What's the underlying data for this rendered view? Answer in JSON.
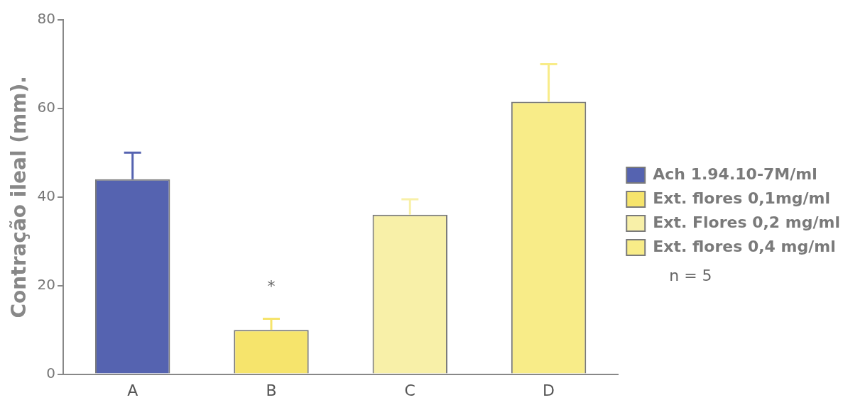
{
  "chart_data": {
    "type": "bar",
    "ylabel": "Contração ileal (mm).",
    "categories": [
      "A",
      "B",
      "C",
      "D"
    ],
    "series": [
      {
        "name": "Ach 1.94.10-7M/ml",
        "color": "#5563b0",
        "values": [
          44,
          null,
          null,
          null
        ],
        "errors": [
          [
            44,
            50
          ],
          null,
          null,
          null
        ]
      },
      {
        "name": "Ext. flores 0,1mg/ml",
        "color": "#f6e46c",
        "values": [
          null,
          10,
          null,
          null
        ],
        "errors": [
          null,
          [
            10,
            12.5
          ],
          null,
          null
        ]
      },
      {
        "name": "Ext. Flores 0,2 mg/ml",
        "color": "#f8f0a8",
        "values": [
          null,
          null,
          36,
          null
        ],
        "errors": [
          null,
          null,
          [
            36,
            39.5
          ],
          null
        ]
      },
      {
        "name": "Ext. flores 0,4 mg/ml",
        "color": "#f8ec88",
        "values": [
          null,
          null,
          null,
          61.5
        ],
        "errors": [
          null,
          null,
          null,
          [
            61.5,
            70
          ]
        ]
      }
    ],
    "ylim": [
      0,
      80
    ],
    "yticks": [
      0,
      20,
      40,
      60,
      80
    ],
    "grid": false,
    "legend": "right",
    "annotations": [
      {
        "text": "*",
        "x": "B",
        "y": 10
      },
      "n = 5"
    ]
  }
}
